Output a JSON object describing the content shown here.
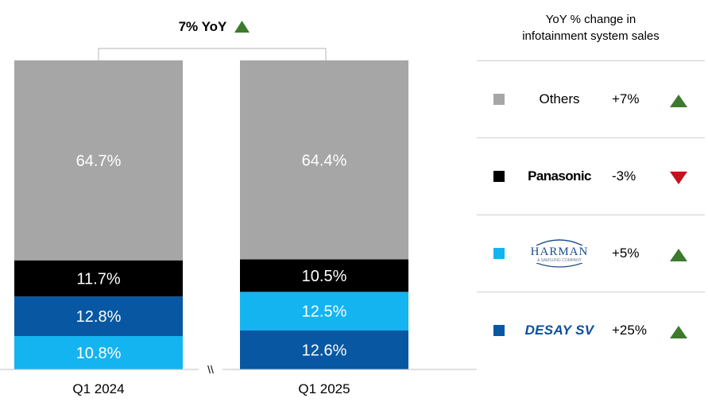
{
  "chart_data": {
    "type": "bar",
    "stacked": true,
    "categories": [
      "Q1 2024",
      "Q1 2025"
    ],
    "yoy_annotation": "7% YoY",
    "axis_break": "\\\\",
    "ylim": [
      0,
      100
    ],
    "series": [
      {
        "name": "Others",
        "values": [
          64.7,
          64.4
        ],
        "labels": [
          "64.7%",
          "64.4%"
        ]
      },
      {
        "name": "Panasonic",
        "values": [
          11.7,
          10.5
        ],
        "labels": [
          "11.7%",
          "10.5%"
        ]
      },
      {
        "name": "HARMAN",
        "values": [
          10.8,
          12.5
        ],
        "labels": [
          "10.8%",
          "12.5%"
        ]
      },
      {
        "name": "DESAY SV",
        "values": [
          12.8,
          12.6
        ],
        "labels": [
          "12.8%",
          "12.6%"
        ]
      }
    ],
    "stack_order_bottom_to_top": [
      [
        "HARMAN",
        "DESAY SV",
        "Panasonic",
        "Others"
      ],
      [
        "DESAY SV",
        "HARMAN",
        "Panasonic",
        "Others"
      ]
    ],
    "colors": {
      "Others": "#a6a6a6",
      "Panasonic": "#000000",
      "HARMAN": "#14b4f0",
      "DESAY SV": "#0757a3"
    }
  },
  "legend": {
    "title_line1": "YoY % change in",
    "title_line2": "infotainment system sales",
    "items": [
      {
        "label": "Others",
        "change": "+7%",
        "direction": "up",
        "swatch": "#a6a6a6"
      },
      {
        "label": "Panasonic",
        "change": "-3%",
        "direction": "down",
        "swatch": "#000000"
      },
      {
        "label": "HARMAN",
        "sublabel": "A SAMSUNG COMPANY",
        "change": "+5%",
        "direction": "up",
        "swatch": "#14b4f0"
      },
      {
        "label": "DESAY SV",
        "change": "+25%",
        "direction": "up",
        "swatch": "#0757a3"
      }
    ],
    "arrow_colors": {
      "up": "#3d7a2e",
      "down": "#c0141e"
    }
  }
}
